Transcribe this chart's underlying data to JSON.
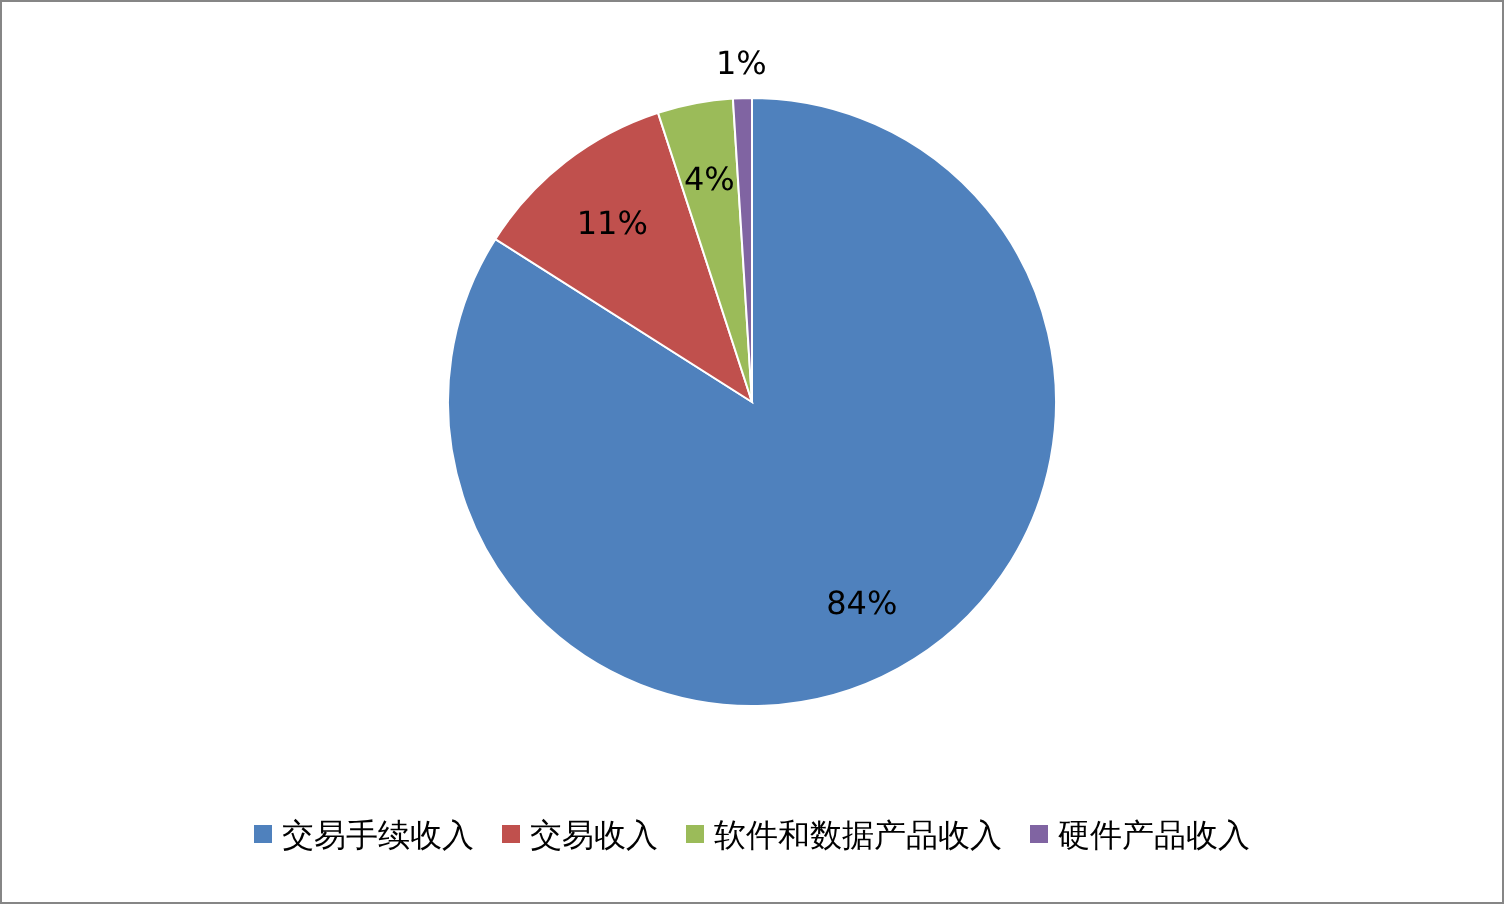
{
  "chart_data": {
    "type": "pie",
    "categories": [
      "交易手续收入",
      "交易收入",
      "软件和数据产品收入",
      "硬件产品收入"
    ],
    "values": [
      84,
      11,
      4,
      1
    ],
    "colors": [
      "#4f81bd",
      "#c0504d",
      "#9bbb59",
      "#8064a2"
    ],
    "value_labels": [
      "84%",
      "11%",
      "4%",
      "1%"
    ],
    "legend": "bottom"
  }
}
